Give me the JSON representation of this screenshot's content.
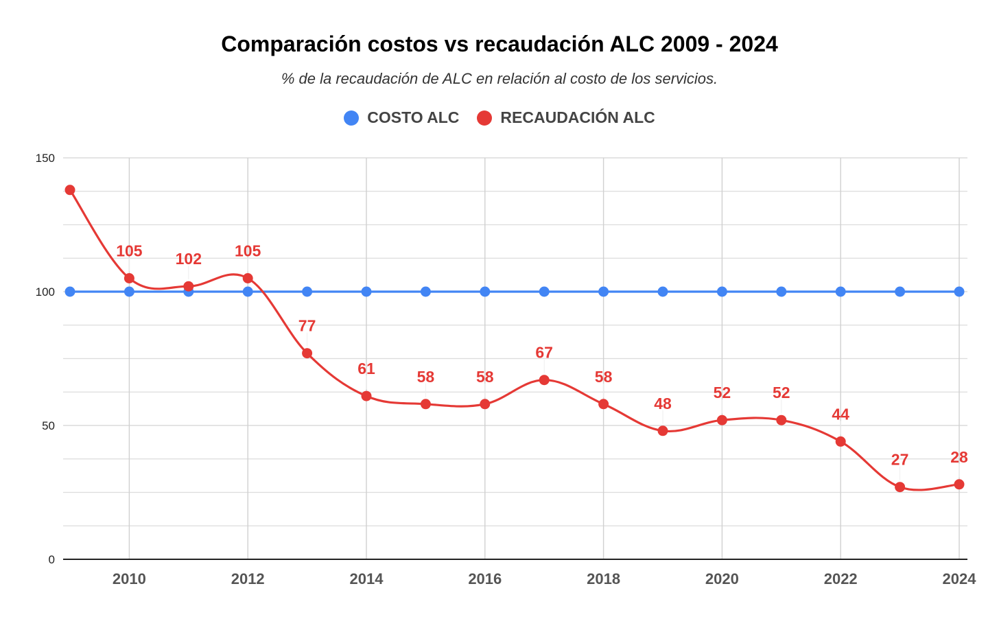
{
  "chart_data": {
    "type": "line",
    "title": "Comparación costos vs recaudación ALC 2009 - 2024",
    "subtitle": "% de la recaudación de ALC en relación al costo de los servicios.",
    "xlabel": "",
    "ylabel": "",
    "x": [
      2009,
      2010,
      2011,
      2012,
      2013,
      2014,
      2015,
      2016,
      2017,
      2018,
      2019,
      2020,
      2021,
      2022,
      2023,
      2024
    ],
    "x_tick_labels": [
      "2010",
      "2012",
      "2014",
      "2016",
      "2018",
      "2020",
      "2022",
      "2024"
    ],
    "x_ticks": [
      2010,
      2012,
      2014,
      2016,
      2018,
      2020,
      2022,
      2024
    ],
    "y_tick_labels": [
      "0",
      "50",
      "100",
      "150"
    ],
    "y_ticks": [
      0,
      50,
      100,
      150
    ],
    "ylim": [
      0,
      150
    ],
    "xlim": [
      2009,
      2024
    ],
    "grid": true,
    "legend_position": "top-center",
    "series": [
      {
        "name": "COSTO ALC",
        "color": "#4285f4",
        "values": [
          100,
          100,
          100,
          100,
          100,
          100,
          100,
          100,
          100,
          100,
          100,
          100,
          100,
          100,
          100,
          100
        ],
        "data_labels": false
      },
      {
        "name": "RECAUDACIÓN ALC",
        "color": "#e53935",
        "values": [
          138,
          105,
          102,
          105,
          77,
          61,
          58,
          58,
          67,
          58,
          48,
          52,
          52,
          44,
          27,
          28
        ],
        "data_labels": true,
        "labeled_points": [
          false,
          true,
          true,
          true,
          true,
          true,
          true,
          true,
          true,
          true,
          true,
          true,
          true,
          true,
          true,
          true
        ]
      }
    ]
  }
}
